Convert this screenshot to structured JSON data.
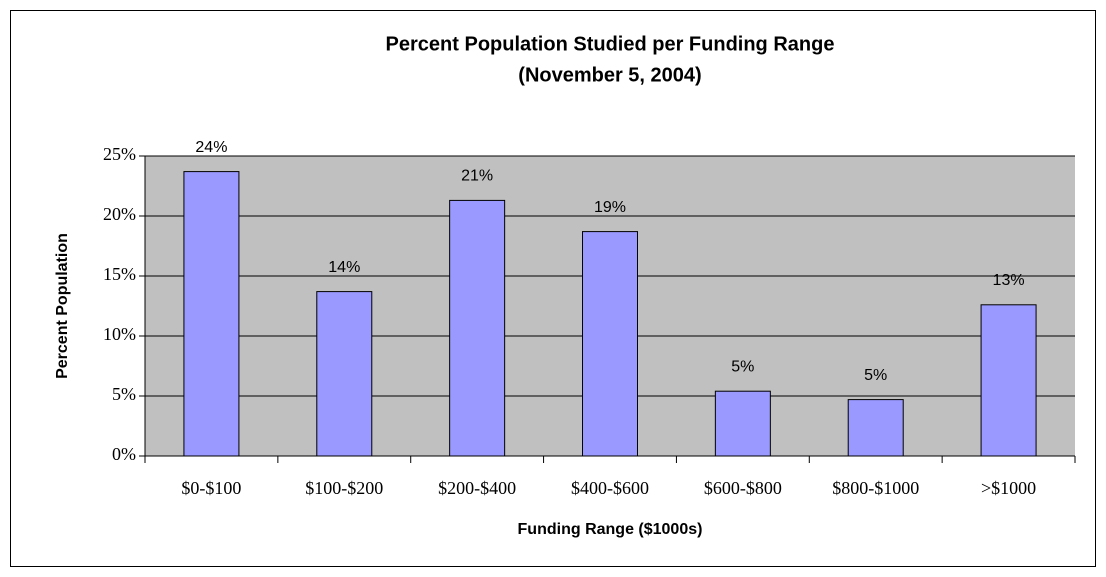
{
  "chart_data": {
    "type": "bar",
    "title": "Percent Population Studied per Funding Range",
    "subtitle": "(November 5, 2004)",
    "x_label": "Funding Range ($1000s)",
    "y_label": "Percent Population",
    "categories": [
      "$0-$100",
      "$100-$200",
      "$200-$400",
      "$400-$600",
      "$600-$800",
      "$800-$1000",
      ">$1000"
    ],
    "values": [
      23.7,
      13.7,
      21.3,
      18.7,
      5.4,
      4.7,
      12.6
    ],
    "value_labels": [
      "24%",
      "14%",
      "21%",
      "19%",
      "5%",
      "5%",
      "13%"
    ],
    "color": "#9999ff",
    "ylim": [
      0,
      25
    ],
    "yticks": [
      {
        "value": 0,
        "label": "0%"
      },
      {
        "value": 5,
        "label": "5%"
      },
      {
        "value": 10,
        "label": "10%"
      },
      {
        "value": 15,
        "label": "15%"
      },
      {
        "value": 20,
        "label": "20%"
      },
      {
        "value": 25,
        "label": "25%"
      }
    ],
    "grid": true
  }
}
